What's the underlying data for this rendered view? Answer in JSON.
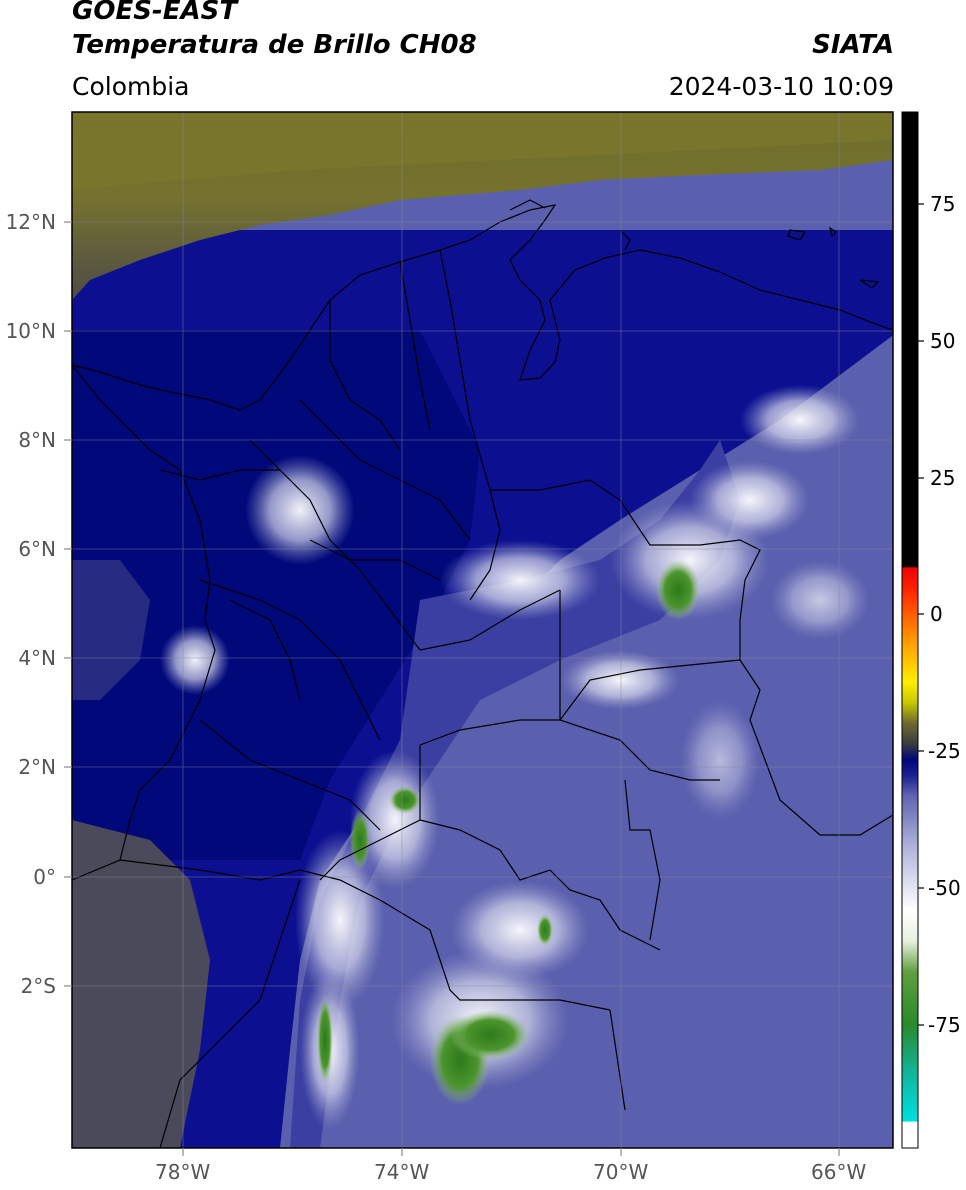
{
  "header": {
    "line1": "GOES-EAST",
    "line2": "Temperatura de Brillo CH08",
    "brand": "SIATA",
    "region": "Colombia",
    "timestamp": "2024-03-10 10:09"
  },
  "map": {
    "lat_labels": [
      "12°N",
      "10°N",
      "8°N",
      "6°N",
      "4°N",
      "2°N",
      "0°",
      "2°S"
    ],
    "lon_labels": [
      "78°W",
      "74°W",
      "70°W",
      "66°W"
    ]
  },
  "colorbar": {
    "labels": [
      "75",
      "50",
      "25",
      "0",
      "-25",
      "-50",
      "-75"
    ]
  }
}
